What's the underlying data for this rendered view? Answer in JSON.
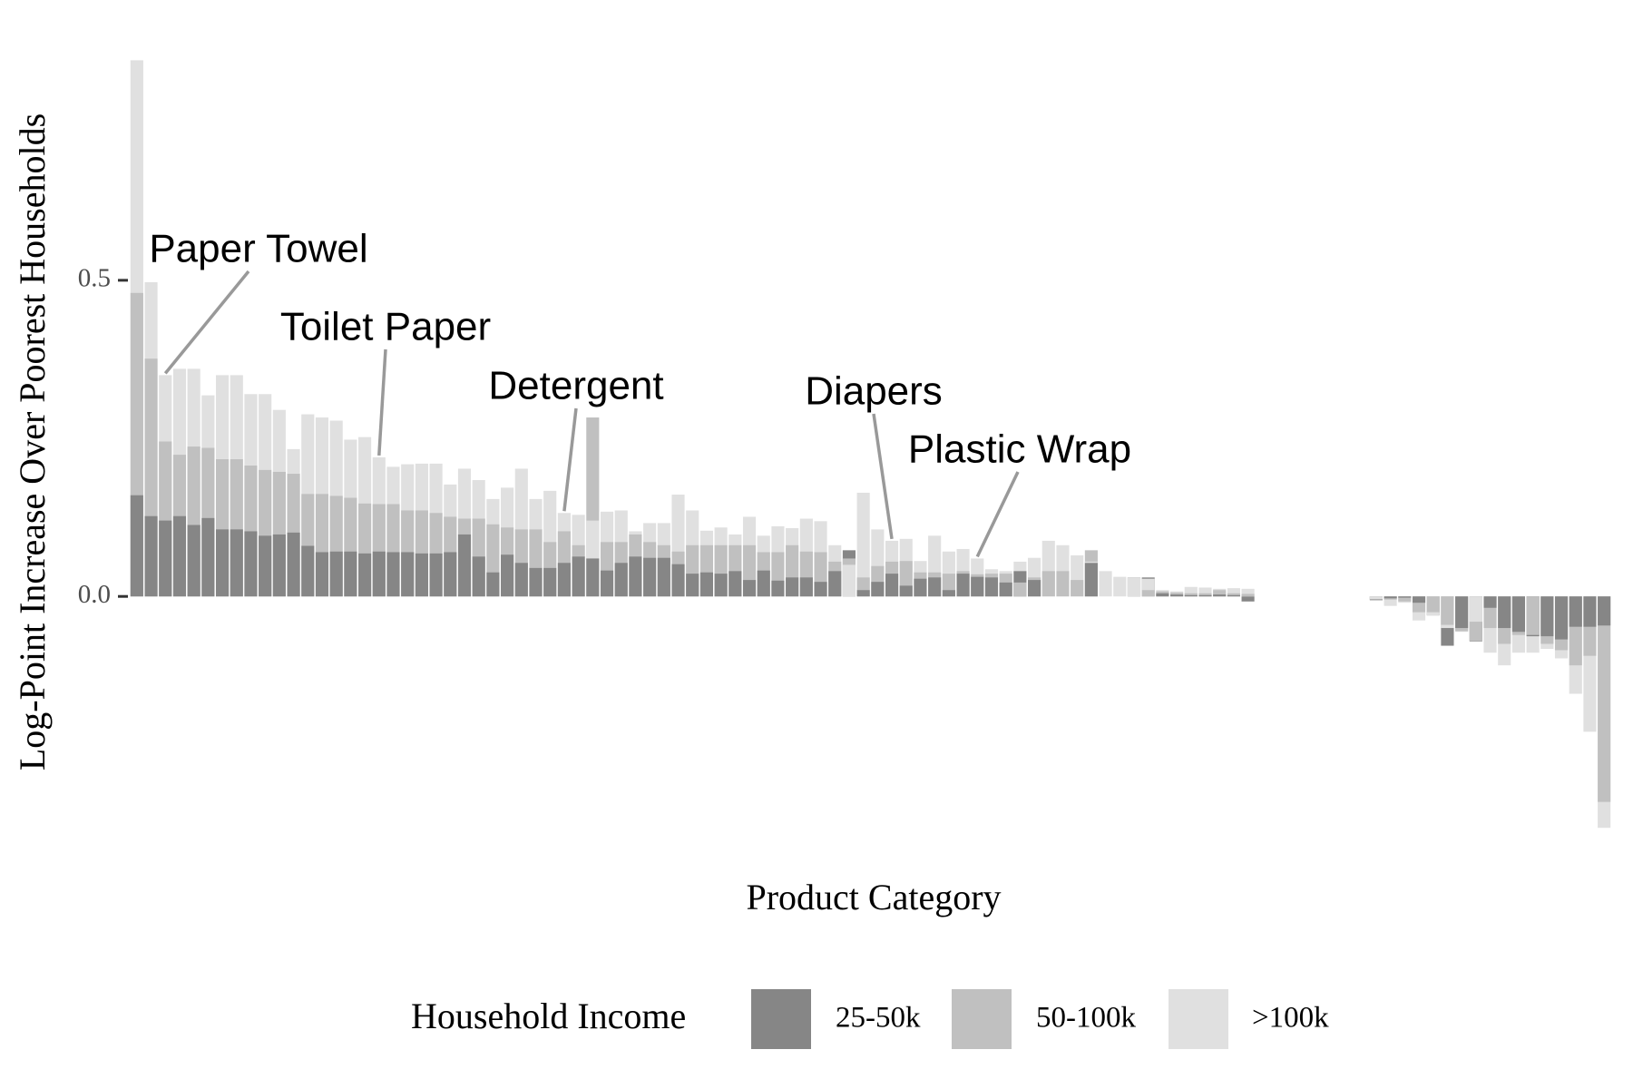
{
  "chart_data": {
    "type": "bar",
    "x_label": "Product Category",
    "y_label": "Log-Point Increase Over Poorest Households",
    "legend_title": "Household Income",
    "legend_position": "bottom",
    "annotations": [
      "Paper Towel",
      "Toilet Paper",
      "Detergent",
      "Diapers",
      "Plastic Wrap"
    ],
    "ylim": [
      -0.37,
      0.85
    ],
    "yticks": [
      {
        "value": 0,
        "label": "0.0"
      },
      0.5
    ],
    "categories": [
      null,
      null,
      null,
      null,
      null,
      null,
      null,
      null,
      null,
      null,
      null,
      null,
      null,
      null,
      null,
      null,
      null,
      null,
      null,
      null,
      null,
      null,
      null,
      null,
      null,
      null,
      null,
      null,
      null,
      null,
      null,
      null,
      null,
      null,
      null,
      null,
      null,
      null,
      null,
      null,
      null,
      null,
      null,
      null,
      null,
      null,
      null,
      null,
      null,
      null,
      null,
      null,
      null,
      null,
      null,
      null,
      null,
      null,
      null,
      null,
      null,
      null,
      null,
      null,
      null,
      null,
      null,
      null,
      null,
      null,
      null,
      null,
      null,
      null,
      null,
      null,
      null,
      null,
      null,
      null,
      null,
      null,
      null,
      null,
      null,
      null,
      null,
      null,
      null,
      null,
      null,
      null,
      null,
      null,
      null,
      null,
      null,
      null,
      null,
      null,
      null,
      null,
      null,
      null
    ],
    "series": [
      {
        "name": "25-50k",
        "color": "#868686",
        "values": [
          0.16,
          0.127,
          0.12,
          0.127,
          0.113,
          0.124,
          0.106,
          0.106,
          0.103,
          0.096,
          0.098,
          0.101,
          0.08,
          0.07,
          0.071,
          0.071,
          0.068,
          0.071,
          0.07,
          0.07,
          0.068,
          0.068,
          0.07,
          0.098,
          0.063,
          0.038,
          0.066,
          0.053,
          0.045,
          0.045,
          0.053,
          0.063,
          0.06,
          0.041,
          0.053,
          0.063,
          0.061,
          0.061,
          0.051,
          0.036,
          0.038,
          0.036,
          0.04,
          0.026,
          0.041,
          0.025,
          0.03,
          0.03,
          0.023,
          0.04,
          0.073,
          0.01,
          0.023,
          0.036,
          0.017,
          0.028,
          0.03,
          0.01,
          0.036,
          0.031,
          0.03,
          0.022,
          0.04,
          0.026,
          0,
          0,
          0,
          0.053,
          0,
          0,
          0.03,
          0.03,
          0.005,
          0.003,
          0.002,
          0.002,
          0.003,
          0.002,
          -0.008,
          null,
          null,
          null,
          null,
          null,
          null,
          null,
          null,
          -0.006,
          -0.003,
          -0.002,
          -0.01,
          -0.03,
          -0.078,
          -0.05,
          -0.071,
          -0.018,
          -0.05,
          -0.056,
          -0.063,
          -0.063,
          -0.068,
          -0.048,
          -0.048,
          -0.046
        ]
      },
      {
        "name": "50-100k",
        "color": "#c0c0c0",
        "values": [
          0.48,
          0.376,
          0.245,
          0.224,
          0.237,
          0.235,
          0.217,
          0.217,
          0.207,
          0.2,
          0.197,
          0.194,
          0.162,
          0.162,
          0.159,
          0.156,
          0.147,
          0.146,
          0.146,
          0.136,
          0.136,
          0.132,
          0.126,
          0.123,
          0.123,
          0.114,
          0.109,
          0.106,
          0.106,
          0.086,
          0.103,
          0.081,
          0.283,
          0.086,
          0.086,
          0.098,
          0.086,
          0.081,
          0.071,
          0.081,
          0.081,
          0.081,
          0.081,
          0.081,
          0.07,
          0.07,
          0.081,
          0.071,
          0.07,
          0.055,
          0.06,
          0.03,
          0.048,
          0.055,
          0.056,
          0.038,
          0.038,
          0.036,
          0.04,
          0.035,
          0.036,
          0.036,
          0.022,
          0.03,
          0.04,
          0.04,
          0.026,
          0.073,
          0,
          0,
          0.03,
          0.01,
          0.008,
          0.006,
          0.005,
          0.005,
          0.01,
          0.005,
          0.004,
          null,
          null,
          null,
          null,
          null,
          null,
          null,
          null,
          -0.005,
          -0.005,
          -0.008,
          -0.025,
          -0.025,
          -0.045,
          -0.055,
          -0.07,
          -0.05,
          -0.075,
          -0.061,
          -0.061,
          -0.075,
          -0.085,
          -0.109,
          -0.094,
          -0.325
        ]
      },
      {
        "name": ">100k",
        "color": "#e0e0e0",
        "values": [
          0.848,
          0.497,
          0.35,
          0.36,
          0.36,
          0.318,
          0.35,
          0.35,
          0.32,
          0.32,
          0.295,
          0.233,
          0.288,
          0.283,
          0.278,
          0.248,
          0.252,
          0.22,
          0.205,
          0.209,
          0.21,
          0.21,
          0.177,
          0.202,
          0.184,
          0.154,
          0.172,
          0.202,
          0.154,
          0.167,
          0.132,
          0.129,
          0.12,
          0.134,
          0.136,
          0.103,
          0.116,
          0.116,
          0.161,
          0.136,
          0.104,
          0.109,
          0.098,
          0.126,
          0.096,
          0.111,
          0.108,
          0.123,
          0.119,
          0.081,
          0.05,
          0.164,
          0.106,
          0.088,
          0.091,
          0.056,
          0.096,
          0.071,
          0.075,
          0.06,
          0.043,
          0.04,
          0.055,
          0.061,
          0.088,
          0.081,
          0.065,
          0.055,
          0.04,
          0.031,
          0.03,
          0.028,
          0.01,
          0.008,
          0.015,
          0.014,
          0.012,
          0.013,
          0.012,
          null,
          null,
          null,
          null,
          null,
          null,
          null,
          null,
          -0.004,
          -0.015,
          -0.01,
          -0.038,
          -0.03,
          -0.05,
          -0.056,
          -0.04,
          -0.089,
          -0.109,
          -0.089,
          -0.089,
          -0.083,
          -0.098,
          -0.154,
          -0.214,
          -0.366
        ]
      }
    ]
  }
}
